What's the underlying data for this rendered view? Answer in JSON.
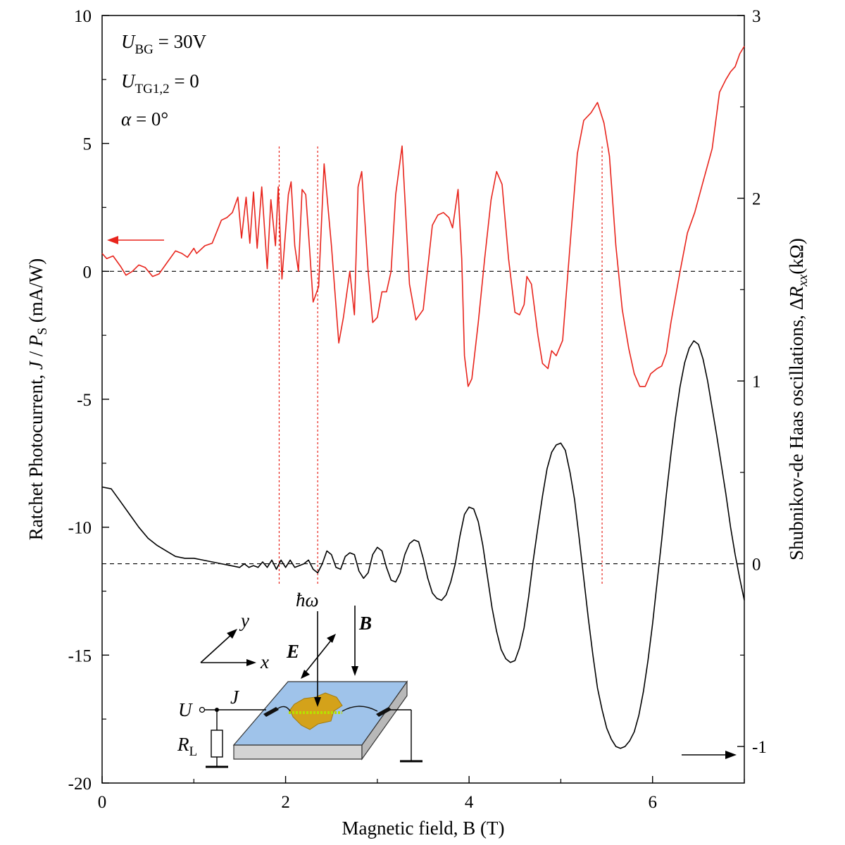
{
  "chart_data": {
    "type": "line",
    "xlabel": "Magnetic field, B (T)",
    "ylabel_left": "Ratchet Photocurrent, J / P_S (mA/W)",
    "ylabel_right": "Shubnikov-de Haas oscillations, ΔR_xx(kΩ)",
    "xlim": [
      0,
      7
    ],
    "ylim_left": [
      -20,
      10
    ],
    "ylim_right": [
      -1.2,
      3
    ],
    "x_ticks": [
      "0",
      "2",
      "4",
      "6"
    ],
    "y_ticks_left": [
      "10",
      "5",
      "0",
      "-5",
      "-10",
      "-15",
      "-20"
    ],
    "y_ticks_right": [
      "3",
      "2",
      "1",
      "0",
      "-1"
    ],
    "annotations": {
      "u_bg": "U_BG = 30V",
      "u_tg": "U_TG1,2 = 0",
      "alpha": "α = 0°"
    },
    "guide_lines_x": [
      1.93,
      2.35,
      5.45
    ],
    "series": [
      {
        "axis": "left",
        "color": "#e8241c",
        "points": [
          [
            0.0,
            0.7
          ],
          [
            0.05,
            0.5
          ],
          [
            0.12,
            0.6
          ],
          [
            0.2,
            0.2
          ],
          [
            0.26,
            -0.15
          ],
          [
            0.33,
            0.0
          ],
          [
            0.4,
            0.25
          ],
          [
            0.47,
            0.15
          ],
          [
            0.55,
            -0.2
          ],
          [
            0.62,
            -0.1
          ],
          [
            0.7,
            0.3
          ],
          [
            0.8,
            0.8
          ],
          [
            0.87,
            0.7
          ],
          [
            0.93,
            0.55
          ],
          [
            1.0,
            0.9
          ],
          [
            1.03,
            0.7
          ],
          [
            1.12,
            1.0
          ],
          [
            1.2,
            1.1
          ],
          [
            1.3,
            2.0
          ],
          [
            1.36,
            2.1
          ],
          [
            1.42,
            2.3
          ],
          [
            1.48,
            2.9
          ],
          [
            1.52,
            1.3
          ],
          [
            1.57,
            2.9
          ],
          [
            1.61,
            1.1
          ],
          [
            1.65,
            3.1
          ],
          [
            1.69,
            0.9
          ],
          [
            1.74,
            3.3
          ],
          [
            1.8,
            0.1
          ],
          [
            1.84,
            2.8
          ],
          [
            1.89,
            1.0
          ],
          [
            1.92,
            3.3
          ],
          [
            1.96,
            -0.3
          ],
          [
            2.03,
            3.0
          ],
          [
            2.06,
            3.5
          ],
          [
            2.1,
            1.0
          ],
          [
            2.14,
            0.0
          ],
          [
            2.18,
            3.2
          ],
          [
            2.22,
            3.0
          ],
          [
            2.25,
            1.5
          ],
          [
            2.3,
            -1.2
          ],
          [
            2.36,
            -0.6
          ],
          [
            2.42,
            4.2
          ],
          [
            2.5,
            1.0
          ],
          [
            2.58,
            -2.8
          ],
          [
            2.63,
            -1.8
          ],
          [
            2.7,
            0.0
          ],
          [
            2.75,
            -1.7
          ],
          [
            2.79,
            3.3
          ],
          [
            2.83,
            3.9
          ],
          [
            2.9,
            0.0
          ],
          [
            2.95,
            -2.0
          ],
          [
            3.0,
            -1.8
          ],
          [
            3.05,
            -0.8
          ],
          [
            3.1,
            -0.8
          ],
          [
            3.15,
            0.0
          ],
          [
            3.2,
            3.0
          ],
          [
            3.27,
            4.9
          ],
          [
            3.35,
            -0.5
          ],
          [
            3.42,
            -1.9
          ],
          [
            3.5,
            -1.5
          ],
          [
            3.6,
            1.8
          ],
          [
            3.66,
            2.2
          ],
          [
            3.72,
            2.3
          ],
          [
            3.78,
            2.1
          ],
          [
            3.82,
            1.7
          ],
          [
            3.88,
            3.2
          ],
          [
            3.92,
            0.5
          ],
          [
            3.95,
            -3.3
          ],
          [
            3.99,
            -4.5
          ],
          [
            4.03,
            -4.2
          ],
          [
            4.1,
            -2.0
          ],
          [
            4.17,
            0.5
          ],
          [
            4.24,
            2.8
          ],
          [
            4.3,
            3.9
          ],
          [
            4.36,
            3.4
          ],
          [
            4.43,
            0.5
          ],
          [
            4.5,
            -1.6
          ],
          [
            4.55,
            -1.7
          ],
          [
            4.6,
            -1.3
          ],
          [
            4.63,
            -0.2
          ],
          [
            4.68,
            -0.5
          ],
          [
            4.75,
            -2.5
          ],
          [
            4.8,
            -3.6
          ],
          [
            4.86,
            -3.8
          ],
          [
            4.9,
            -3.1
          ],
          [
            4.95,
            -3.3
          ],
          [
            5.02,
            -2.7
          ],
          [
            5.1,
            1.0
          ],
          [
            5.18,
            4.6
          ],
          [
            5.25,
            5.9
          ],
          [
            5.33,
            6.2
          ],
          [
            5.4,
            6.6
          ],
          [
            5.47,
            5.8
          ],
          [
            5.53,
            4.5
          ],
          [
            5.6,
            1.0
          ],
          [
            5.67,
            -1.5
          ],
          [
            5.74,
            -3.0
          ],
          [
            5.8,
            -4.0
          ],
          [
            5.86,
            -4.5
          ],
          [
            5.92,
            -4.5
          ],
          [
            5.98,
            -4.0
          ],
          [
            6.05,
            -3.8
          ],
          [
            6.1,
            -3.7
          ],
          [
            6.15,
            -3.2
          ],
          [
            6.2,
            -2.0
          ],
          [
            6.3,
            0.0
          ],
          [
            6.38,
            1.5
          ],
          [
            6.46,
            2.3
          ],
          [
            6.55,
            3.5
          ],
          [
            6.65,
            4.8
          ],
          [
            6.73,
            7.0
          ],
          [
            6.8,
            7.5
          ],
          [
            6.85,
            7.8
          ],
          [
            6.9,
            8.0
          ],
          [
            6.95,
            8.5
          ],
          [
            7.0,
            8.8
          ]
        ]
      },
      {
        "axis": "right",
        "color": "#000000",
        "points": [
          [
            0.0,
            0.42
          ],
          [
            0.1,
            0.41
          ],
          [
            0.2,
            0.34
          ],
          [
            0.3,
            0.27
          ],
          [
            0.4,
            0.2
          ],
          [
            0.5,
            0.14
          ],
          [
            0.6,
            0.1
          ],
          [
            0.7,
            0.07
          ],
          [
            0.8,
            0.04
          ],
          [
            0.9,
            0.03
          ],
          [
            1.0,
            0.03
          ],
          [
            1.1,
            0.02
          ],
          [
            1.2,
            0.01
          ],
          [
            1.3,
            0.0
          ],
          [
            1.4,
            -0.01
          ],
          [
            1.5,
            -0.02
          ],
          [
            1.55,
            0.0
          ],
          [
            1.6,
            -0.02
          ],
          [
            1.65,
            -0.01
          ],
          [
            1.7,
            -0.02
          ],
          [
            1.75,
            0.01
          ],
          [
            1.8,
            -0.02
          ],
          [
            1.85,
            0.02
          ],
          [
            1.9,
            -0.03
          ],
          [
            1.95,
            0.02
          ],
          [
            2.0,
            -0.02
          ],
          [
            2.05,
            0.02
          ],
          [
            2.1,
            -0.02
          ],
          [
            2.15,
            -0.01
          ],
          [
            2.2,
            0.0
          ],
          [
            2.25,
            0.02
          ],
          [
            2.3,
            -0.03
          ],
          [
            2.35,
            -0.05
          ],
          [
            2.4,
            0.0
          ],
          [
            2.45,
            0.07
          ],
          [
            2.5,
            0.05
          ],
          [
            2.55,
            -0.02
          ],
          [
            2.6,
            -0.03
          ],
          [
            2.65,
            0.04
          ],
          [
            2.7,
            0.06
          ],
          [
            2.75,
            0.05
          ],
          [
            2.8,
            -0.04
          ],
          [
            2.85,
            -0.08
          ],
          [
            2.9,
            -0.05
          ],
          [
            2.95,
            0.05
          ],
          [
            3.0,
            0.09
          ],
          [
            3.05,
            0.07
          ],
          [
            3.1,
            -0.02
          ],
          [
            3.15,
            -0.09
          ],
          [
            3.2,
            -0.1
          ],
          [
            3.25,
            -0.05
          ],
          [
            3.3,
            0.05
          ],
          [
            3.35,
            0.11
          ],
          [
            3.4,
            0.13
          ],
          [
            3.45,
            0.12
          ],
          [
            3.5,
            0.03
          ],
          [
            3.55,
            -0.08
          ],
          [
            3.6,
            -0.16
          ],
          [
            3.65,
            -0.19
          ],
          [
            3.7,
            -0.2
          ],
          [
            3.75,
            -0.17
          ],
          [
            3.8,
            -0.1
          ],
          [
            3.85,
            0.0
          ],
          [
            3.9,
            0.15
          ],
          [
            3.95,
            0.27
          ],
          [
            4.0,
            0.31
          ],
          [
            4.05,
            0.3
          ],
          [
            4.1,
            0.23
          ],
          [
            4.15,
            0.1
          ],
          [
            4.2,
            -0.07
          ],
          [
            4.25,
            -0.24
          ],
          [
            4.3,
            -0.37
          ],
          [
            4.35,
            -0.47
          ],
          [
            4.4,
            -0.52
          ],
          [
            4.45,
            -0.54
          ],
          [
            4.5,
            -0.53
          ],
          [
            4.55,
            -0.46
          ],
          [
            4.6,
            -0.35
          ],
          [
            4.65,
            -0.18
          ],
          [
            4.7,
            0.02
          ],
          [
            4.75,
            0.2
          ],
          [
            4.8,
            0.37
          ],
          [
            4.85,
            0.52
          ],
          [
            4.9,
            0.61
          ],
          [
            4.95,
            0.65
          ],
          [
            5.0,
            0.66
          ],
          [
            5.05,
            0.62
          ],
          [
            5.1,
            0.5
          ],
          [
            5.15,
            0.35
          ],
          [
            5.2,
            0.14
          ],
          [
            5.25,
            -0.08
          ],
          [
            5.3,
            -0.3
          ],
          [
            5.35,
            -0.5
          ],
          [
            5.4,
            -0.68
          ],
          [
            5.45,
            -0.8
          ],
          [
            5.5,
            -0.9
          ],
          [
            5.55,
            -0.96
          ],
          [
            5.6,
            -1.0
          ],
          [
            5.65,
            -1.01
          ],
          [
            5.7,
            -1.0
          ],
          [
            5.75,
            -0.97
          ],
          [
            5.8,
            -0.92
          ],
          [
            5.85,
            -0.83
          ],
          [
            5.9,
            -0.7
          ],
          [
            5.95,
            -0.53
          ],
          [
            6.0,
            -0.33
          ],
          [
            6.05,
            -0.1
          ],
          [
            6.1,
            0.13
          ],
          [
            6.15,
            0.38
          ],
          [
            6.2,
            0.6
          ],
          [
            6.25,
            0.8
          ],
          [
            6.3,
            0.97
          ],
          [
            6.35,
            1.1
          ],
          [
            6.4,
            1.18
          ],
          [
            6.45,
            1.22
          ],
          [
            6.5,
            1.2
          ],
          [
            6.55,
            1.12
          ],
          [
            6.6,
            1.0
          ],
          [
            6.65,
            0.85
          ],
          [
            6.7,
            0.7
          ],
          [
            6.75,
            0.54
          ],
          [
            6.8,
            0.38
          ],
          [
            6.85,
            0.2
          ],
          [
            6.9,
            0.05
          ],
          [
            6.95,
            -0.08
          ],
          [
            7.0,
            -0.2
          ]
        ]
      }
    ],
    "inset": {
      "label_hw": "ħω",
      "label_B": "B",
      "label_E": "E",
      "label_x": "x",
      "label_y": "y",
      "label_U": "U",
      "label_J": "J",
      "label_RL": "R",
      "label_RL_sub": "L"
    }
  }
}
